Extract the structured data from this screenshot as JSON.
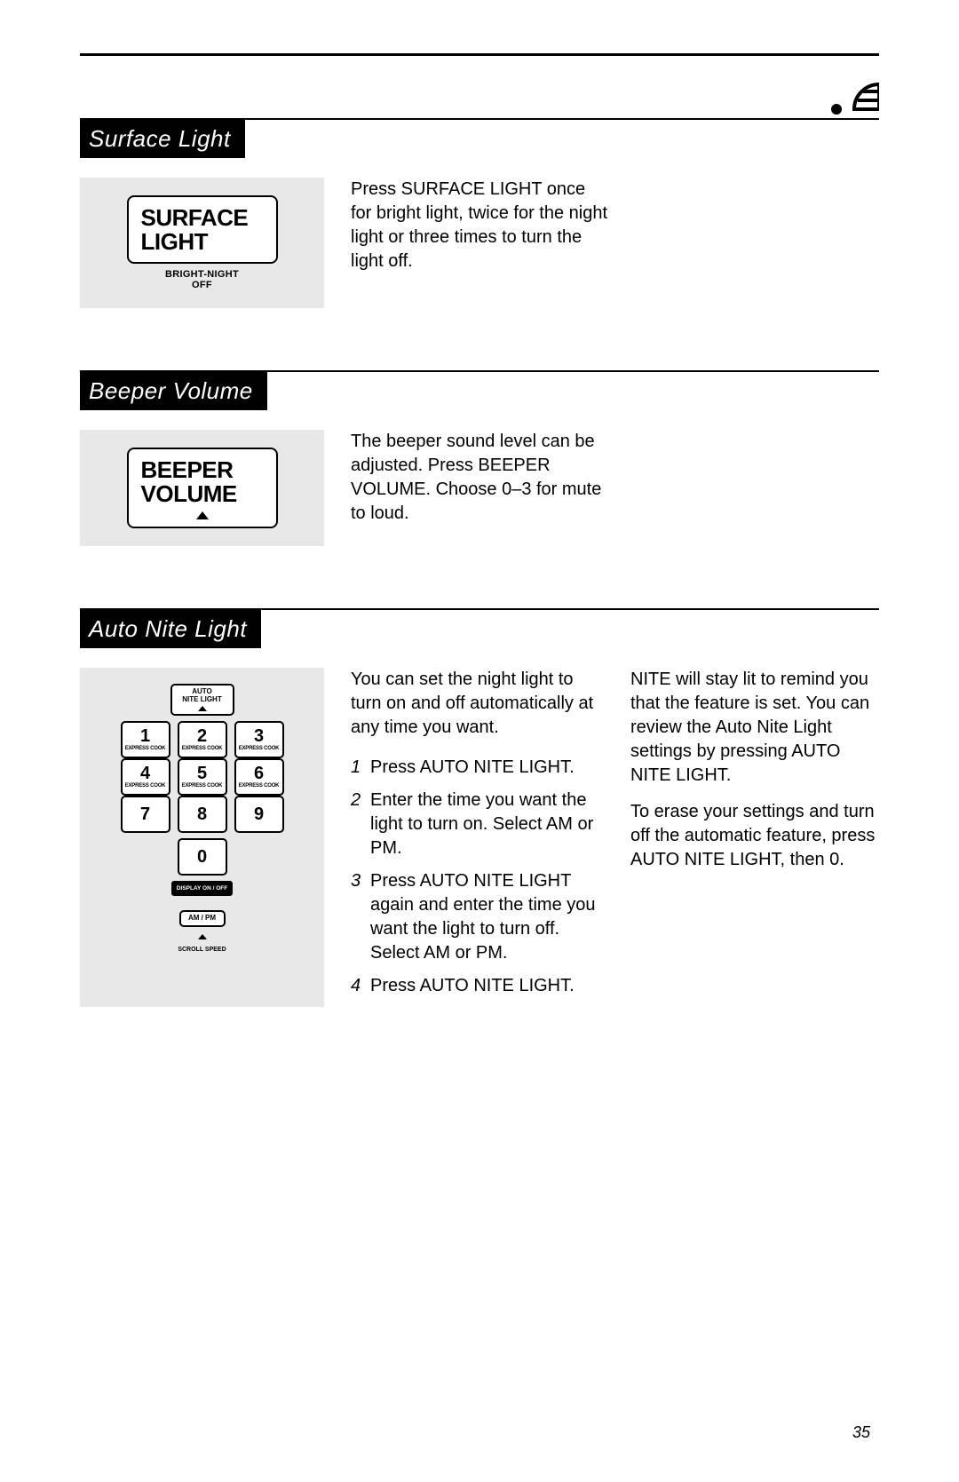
{
  "page_number": "35",
  "sections": {
    "surface": {
      "title": "Surface Light",
      "button": {
        "line1": "SURFACE",
        "line2": "LIGHT",
        "sub1": "BRIGHT-NIGHT",
        "sub2": "OFF"
      },
      "desc": "Press SURFACE LIGHT once for bright light, twice for the night light or three times to turn the light off."
    },
    "beeper": {
      "title": "Beeper Volume",
      "button": {
        "line1": "BEEPER",
        "line2": "VOLUME"
      },
      "desc": "The beeper sound level can be adjusted. Press BEEPER VOLUME. Choose 0–3 for mute to loud."
    },
    "auto": {
      "title": "Auto Nite Light",
      "keypad": {
        "auto_label1": "AUTO",
        "auto_label2": "NITE LIGHT",
        "keys": [
          [
            "1",
            "EXPRESS COOK"
          ],
          [
            "2",
            "EXPRESS COOK"
          ],
          [
            "3",
            "EXPRESS COOK"
          ],
          [
            "4",
            "EXPRESS COOK"
          ],
          [
            "5",
            "EXPRESS COOK"
          ],
          [
            "6",
            "EXPRESS COOK"
          ],
          [
            "7",
            ""
          ],
          [
            "8",
            ""
          ],
          [
            "9",
            ""
          ]
        ],
        "zero": "0",
        "display": "DISPLAY ON / OFF",
        "ampm": "AM / PM",
        "scroll": "SCROLL SPEED"
      },
      "col1_intro": "You can set the night light to turn on and off automatically at any time you want.",
      "steps": [
        "Press AUTO NITE LIGHT.",
        "Enter the time you want the light to turn on. Select AM or PM.",
        "Press AUTO NITE LIGHT again and enter the time you want the light to turn off. Select AM or PM.",
        "Press AUTO NITE LIGHT."
      ],
      "col2_p1": "NITE will stay lit to remind you that the feature is set. You can review the Auto Nite Light settings by pressing AUTO NITE LIGHT.",
      "col2_p2": "To erase your settings and turn off the automatic feature, press AUTO NITE LIGHT, then 0."
    }
  }
}
